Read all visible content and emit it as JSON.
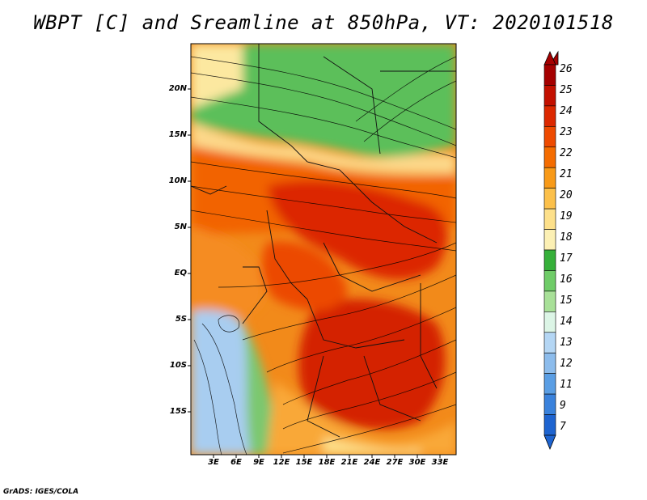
{
  "title": "WBPT [C] and Sreamline at 850hPa, VT: 2020101518",
  "credit": "GrADS: IGES/COLA",
  "lat_labels": [
    "20N",
    "15N",
    "10N",
    "5N",
    "EQ",
    "5S",
    "10S",
    "15S"
  ],
  "lon_labels": [
    "3E",
    "6E",
    "9E",
    "12E",
    "15E",
    "18E",
    "21E",
    "24E",
    "27E",
    "30E",
    "33E"
  ],
  "colorbar": {
    "levels": [
      "26",
      "25",
      "24",
      "23",
      "22",
      "21",
      "20",
      "19",
      "18",
      "17",
      "16",
      "15",
      "14",
      "13",
      "12",
      "11",
      "9",
      "7"
    ],
    "colors": [
      "#a50000",
      "#c31000",
      "#dc2800",
      "#ee4a00",
      "#f46c00",
      "#f89a18",
      "#fcc04a",
      "#fde08a",
      "#fcf0b4",
      "#36b03a",
      "#6fcc68",
      "#a8e098",
      "#dcf5e6",
      "#b4d6f4",
      "#8cbcec",
      "#5a9ee4",
      "#3a82dc",
      "#1e64d0"
    ]
  },
  "regions": {
    "cold_sea": "#a8cdf0",
    "south_ocean": "#c8e4f6",
    "north_dry": "#5cbf5a",
    "hot_core": "#e23000",
    "warm": "#f26400",
    "mild": "#f9a838"
  }
}
